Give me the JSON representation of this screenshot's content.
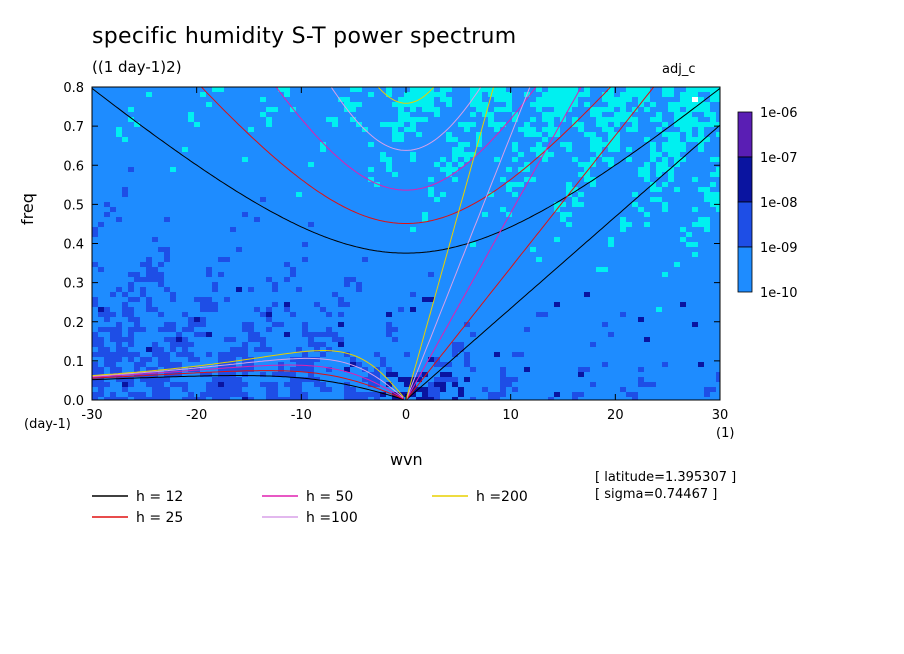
{
  "title": "specific humidity S-T power spectrum",
  "units_line": "((1 day-1)2)",
  "run_tag": "adj_c",
  "info": {
    "latitude": "[ latitude=1.395307 ]",
    "sigma": "[ sigma=0.74467 ]"
  },
  "chart_data": {
    "type": "heatmap",
    "title": "specific humidity S-T power spectrum",
    "xlabel": "wvn",
    "ylabel": "freq",
    "x_unit": "(1)",
    "y_unit": "(day-1)",
    "xlim": [
      -30,
      30
    ],
    "ylim": [
      0,
      0.8
    ],
    "x_ticks": [
      -30,
      -20,
      -10,
      0,
      10,
      20,
      30
    ],
    "x_tick_labels": [
      "-30",
      "-20",
      "-10",
      "0",
      "10",
      "20",
      "30"
    ],
    "y_ticks": [
      0,
      0.1,
      0.2,
      0.3,
      0.4,
      0.5,
      0.6,
      0.7,
      0.8
    ],
    "y_tick_labels": [
      "0.0",
      "0.1",
      "0.2",
      "0.3",
      "0.4",
      "0.5",
      "0.6",
      "0.7",
      "0.8"
    ],
    "colorbar": {
      "labels": [
        "1e-06",
        "1e-07",
        "1e-08",
        "1e-09",
        "1e-10"
      ],
      "colors": [
        "#5a1eb4",
        "#0a14a0",
        "#1e4ee6",
        "#1e8cff",
        "#00f0f0"
      ]
    },
    "dispersion_curves": [
      {
        "name": "h = 12",
        "h": 12,
        "color": "#000000"
      },
      {
        "name": "h = 25",
        "h": 25,
        "color": "#e01010"
      },
      {
        "name": "h = 50",
        "h": 50,
        "color": "#e020b0"
      },
      {
        "name": "h =100",
        "h": 100,
        "color": "#d8a0e8"
      },
      {
        "name": "h =200",
        "h": 200,
        "color": "#e8d000"
      }
    ]
  },
  "colors": {
    "background": "#ffffff",
    "frame": "#000000"
  }
}
